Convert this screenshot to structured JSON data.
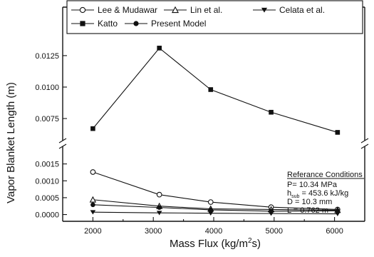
{
  "chart_data": {
    "type": "line",
    "xlabel": "Mass Flux (kg/m",
    "xlabel_sup": "2",
    "xlabel_end": "s)",
    "ylabel": "Vapor Blanket Length (m)",
    "x_ticks": [
      "2000",
      "3000",
      "4000",
      "5000",
      "6000"
    ],
    "x_range": [
      1500,
      6500
    ],
    "y_axis_broken": true,
    "y_lower_range": [
      -0.0002,
      0.002
    ],
    "y_upper_range": [
      0.0058,
      0.0138
    ],
    "y_lower_ticks": [
      "0.0000",
      "0.0005",
      "0.0010",
      "0.0015"
    ],
    "y_upper_ticks": [
      "0.0075",
      "0.0100",
      "0.0125"
    ],
    "legend_placement": "top",
    "series": [
      {
        "name": "Lee & Mudawar",
        "marker": "circle-open",
        "x": [
          2000,
          3100,
          3950,
          4950,
          6050
        ],
        "values": [
          0.00126,
          0.00059,
          0.00037,
          0.00022,
          0.00015
        ]
      },
      {
        "name": "Lin et al.",
        "marker": "triangle-up-open",
        "x": [
          2000,
          3100,
          3950,
          4950,
          6050
        ],
        "values": [
          0.00044,
          0.00025,
          0.00017,
          0.00015,
          0.00013
        ]
      },
      {
        "name": "Celata et al.",
        "marker": "triangle-down-filled",
        "x": [
          2000,
          3100,
          3950,
          4950,
          6050
        ],
        "values": [
          7e-05,
          5e-05,
          4e-05,
          3e-05,
          2e-05
        ]
      },
      {
        "name": "Katto",
        "marker": "square-filled",
        "x": [
          2000,
          3100,
          3950,
          4950,
          6050
        ],
        "values": [
          0.0067,
          0.0131,
          0.0098,
          0.008,
          0.0064
        ]
      },
      {
        "name": "Present Model",
        "marker": "circle-filled",
        "x": [
          2000,
          3100,
          3950,
          4950,
          6050
        ],
        "values": [
          0.00029,
          0.00021,
          0.00014,
          0.0001,
          0.00011
        ]
      }
    ],
    "annotation": {
      "title": "Referance Conditions",
      "lines": [
        {
          "prefix": "P= 10.34 MPa",
          "sub": "",
          "suffix": ""
        },
        {
          "prefix": "h",
          "sub": "sub",
          "suffix": " = 453.6 kJ/kg"
        },
        {
          "prefix": "D = 10.3 mm",
          "sub": "",
          "suffix": ""
        },
        {
          "prefix": "L = 0.762 m",
          "sub": "",
          "suffix": ""
        }
      ]
    }
  }
}
